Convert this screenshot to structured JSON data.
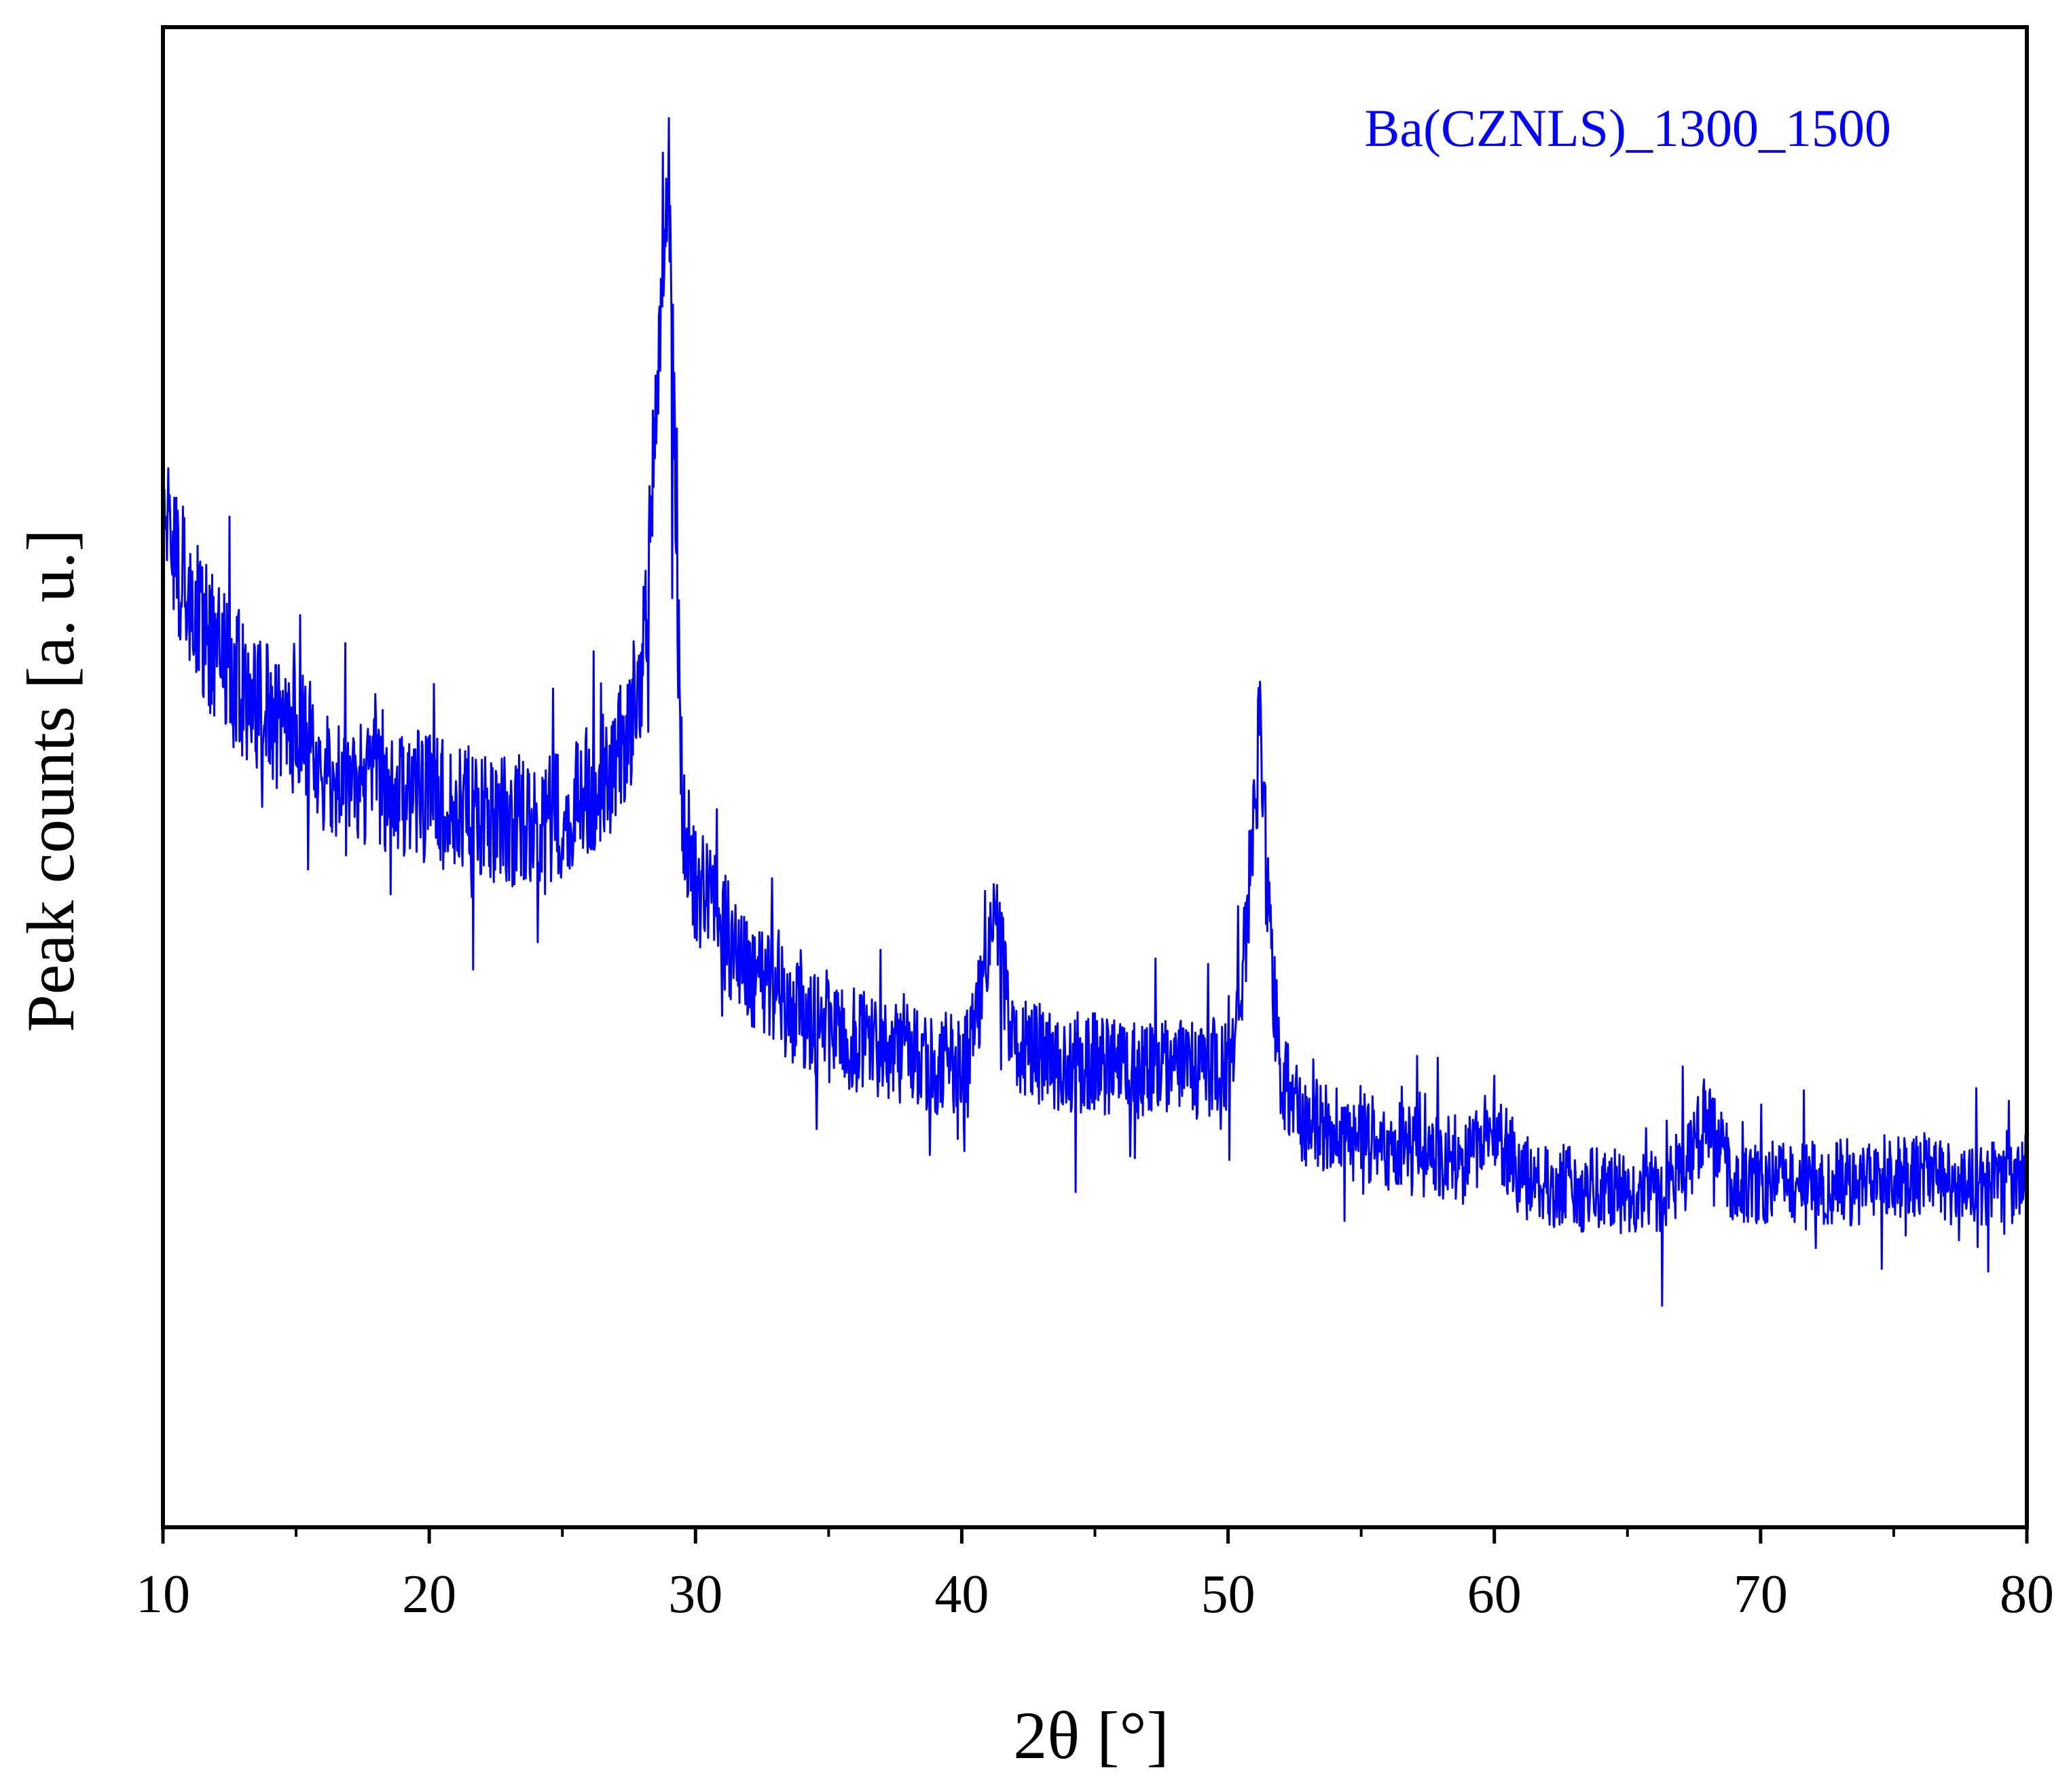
{
  "chart_data": {
    "type": "line",
    "legend_placement": "top-right",
    "grid": false,
    "xlabel": "2θ [°]",
    "ylabel": "Peak counts [a. u.]",
    "xlim": [
      10,
      80
    ],
    "ylim": [
      0,
      100
    ],
    "y_ticks_labeled": false,
    "xticks": [
      10,
      20,
      30,
      40,
      50,
      60,
      70,
      80
    ],
    "xtick_labels": [
      "10",
      "20",
      "30",
      "40",
      "50",
      "60",
      "70",
      "80"
    ],
    "series": [
      {
        "name": "Ba(CZNLS)_1300_1500",
        "color": "#0000ff",
        "x": [
          10,
          10.5,
          11,
          11.5,
          12,
          13,
          14,
          15,
          16,
          17,
          18,
          19,
          20,
          21,
          22,
          23,
          24,
          25,
          26,
          27,
          27.5,
          28,
          28.3,
          28.6,
          28.8,
          29,
          29.2,
          29.5,
          30,
          31,
          32,
          33,
          34,
          35,
          36,
          37,
          38,
          39,
          40,
          40.5,
          41,
          41.3,
          41.6,
          42,
          43,
          44,
          45,
          46,
          47,
          48,
          49,
          50,
          50.5,
          50.8,
          51,
          51.2,
          51.4,
          51.7,
          52,
          52.5,
          53,
          54,
          55,
          56,
          57,
          58,
          59,
          59.5,
          60,
          60.5,
          61,
          62,
          63,
          64,
          65,
          66,
          67,
          67.5,
          68,
          68.5,
          69,
          70,
          71,
          72,
          73,
          74,
          75,
          76,
          77,
          78,
          79,
          80
        ],
        "y": [
          68,
          65,
          62,
          60,
          58,
          56,
          54,
          53,
          51,
          50,
          49.5,
          49,
          48.5,
          48,
          47.5,
          47,
          47,
          47.5,
          49,
          51,
          53,
          57,
          65,
          78,
          88,
          90,
          72,
          48,
          43,
          40,
          37,
          35.5,
          34,
          33,
          32.5,
          32,
          31.5,
          31,
          31,
          33,
          38,
          42,
          36,
          32,
          31.5,
          31,
          31,
          30.5,
          30.5,
          30.5,
          30.5,
          31,
          35,
          43,
          50,
          52,
          46,
          36,
          30,
          28,
          27,
          26.5,
          26,
          25.5,
          25,
          24.5,
          24.5,
          25.5,
          27,
          25,
          23.5,
          23,
          22.5,
          22.5,
          22.5,
          22.5,
          23,
          25,
          28,
          25,
          23,
          23,
          23,
          23,
          23,
          23,
          23.5,
          23.5,
          23,
          23,
          23,
          23
        ]
      }
    ]
  }
}
